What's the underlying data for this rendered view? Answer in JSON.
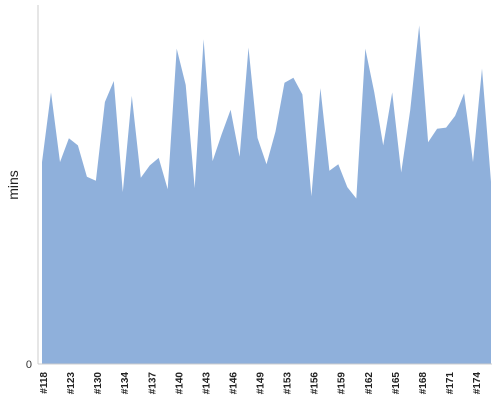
{
  "chart_data": {
    "type": "area",
    "title": "",
    "xlabel": "",
    "ylabel": "mins",
    "ylim": [
      0,
      100
    ],
    "y_ticks": [
      {
        "label": "0",
        "value": 0
      }
    ],
    "x_tick_labels": [
      "#118",
      "#123",
      "#130",
      "#134",
      "#137",
      "#140",
      "#143",
      "#146",
      "#149",
      "#153",
      "#156",
      "#159",
      "#162",
      "#165",
      "#168",
      "#171",
      "#174"
    ],
    "grid": false,
    "legend": "none",
    "colors": {
      "fill": "#8fb0db",
      "axis": "#cccccc"
    },
    "values": [
      56.7,
      76.3,
      56.7,
      63.4,
      61.4,
      52.6,
      51.5,
      73.6,
      79.5,
      48.3,
      75.3,
      52.3,
      55.8,
      57.9,
      49.1,
      88.6,
      78.4,
      49.4,
      91.2,
      57.0,
      64.5,
      71.4,
      58.2,
      88.9,
      63.5,
      56.1,
      65.3,
      79.0,
      80.4,
      75.7,
      47.1,
      77.5,
      54.3,
      56.1,
      49.7,
      46.5,
      88.6,
      76.3,
      61.4,
      76.3,
      53.8,
      71.3,
      95.1,
      62.3,
      66.1,
      66.4,
      69.7,
      76.0,
      56.7,
      83.0,
      51.2
    ]
  }
}
